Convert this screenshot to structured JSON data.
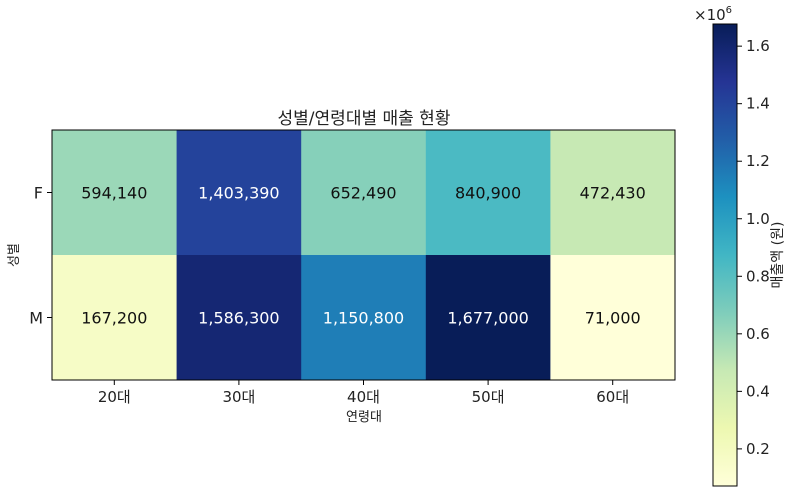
{
  "chart_data": {
    "type": "heatmap",
    "title": "성별/연령대별 매출 현황",
    "xlabel": "연령대",
    "ylabel": "성별",
    "x_categories": [
      "20대",
      "30대",
      "40대",
      "50대",
      "60대"
    ],
    "y_categories": [
      "F",
      "M"
    ],
    "values": [
      [
        594140,
        1403390,
        652490,
        840900,
        472430
      ],
      [
        167200,
        1586300,
        1150800,
        1677000,
        71000
      ]
    ],
    "cell_labels": [
      [
        "594,140",
        "1,403,390",
        "652,490",
        "840,900",
        "472,430"
      ],
      [
        "167,200",
        "1,586,300",
        "1,150,800",
        "1,677,000",
        "71,000"
      ]
    ],
    "colormap": "YlGnBu",
    "colorbar": {
      "label": "매출액 (원)",
      "offset_text": "×10",
      "offset_exponent": "6",
      "range": [
        71000,
        1677000
      ],
      "ticks": [
        0.2,
        0.4,
        0.6,
        0.8,
        1.0,
        1.2,
        1.4,
        1.6
      ],
      "tick_labels": [
        "0.2",
        "0.4",
        "0.6",
        "0.8",
        "1.0",
        "1.2",
        "1.4",
        "1.6"
      ]
    },
    "colormap_stops": [
      "#ffffd9",
      "#edf8b1",
      "#c7e9b4",
      "#7fcdbb",
      "#41b6c4",
      "#1d91c0",
      "#225ea8",
      "#253494",
      "#081d58"
    ]
  }
}
